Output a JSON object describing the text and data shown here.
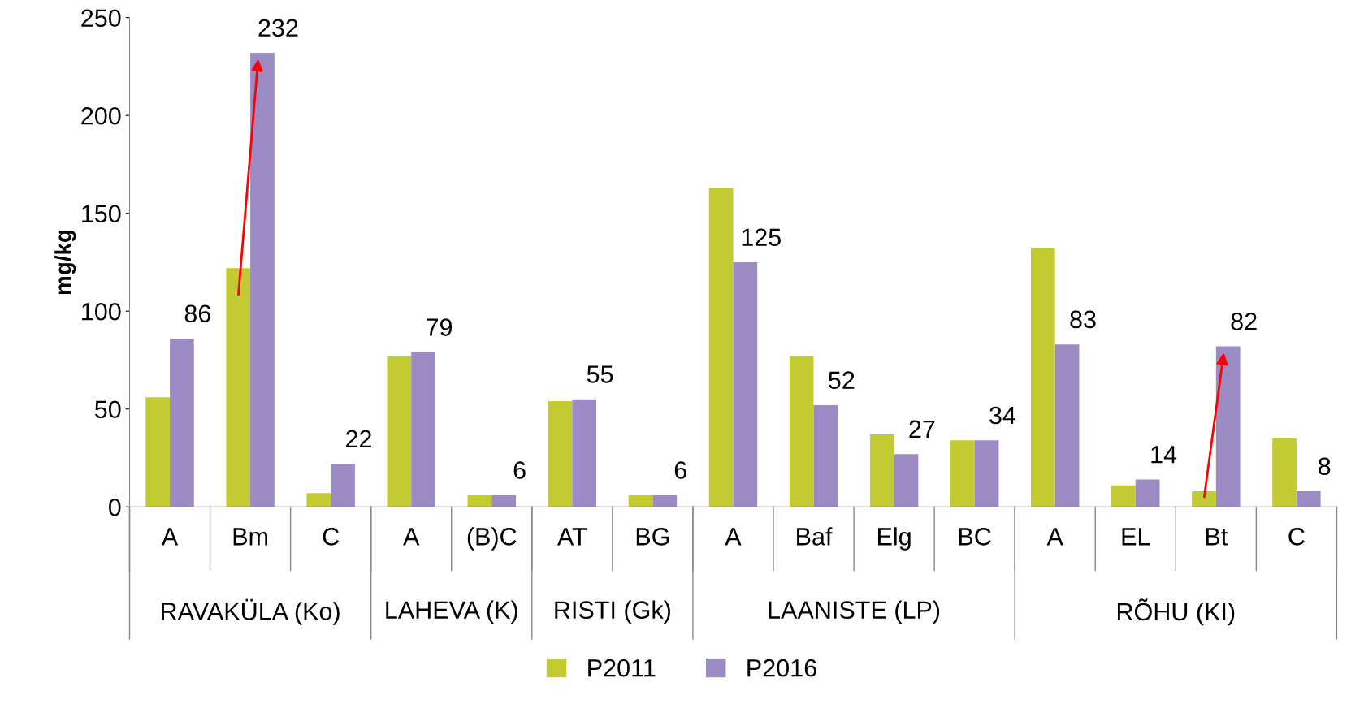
{
  "chart_data": {
    "type": "bar",
    "ylabel": "mg/kg",
    "categories": [
      "A",
      "Bm",
      "C",
      "A",
      "(B)C",
      "AT",
      "BG",
      "A",
      "Baf",
      "Elg",
      "BC",
      "A",
      "EL",
      "Bt",
      "C"
    ],
    "annotations": [
      "RAVAKÜLA (Ko)",
      "LAHEVA (K)",
      "RISTI (Gk)",
      "LAANISTE (LP)",
      "RÕHU (KI)"
    ],
    "series": [
      {
        "name": "P2011",
        "color": "#c3cb32",
        "values": [
          56,
          122,
          7,
          77,
          6,
          54,
          6,
          163,
          77,
          37,
          34,
          132,
          11,
          8,
          35
        ]
      },
      {
        "name": "P2016",
        "color": "#9b8ac3",
        "values": [
          86,
          232,
          22,
          79,
          6,
          55,
          6,
          125,
          52,
          27,
          34,
          83,
          14,
          82,
          8
        ],
        "value_labels": [
          "86",
          "232",
          "22",
          "79",
          "6",
          "55",
          "6",
          "125",
          "52",
          "27",
          "34",
          "83",
          "14",
          "82",
          "8"
        ]
      }
    ],
    "ylim": [
      0,
      250
    ],
    "yticks": [
      0,
      50,
      100,
      150,
      200,
      250
    ],
    "grid": false,
    "legend": "bottom"
  }
}
